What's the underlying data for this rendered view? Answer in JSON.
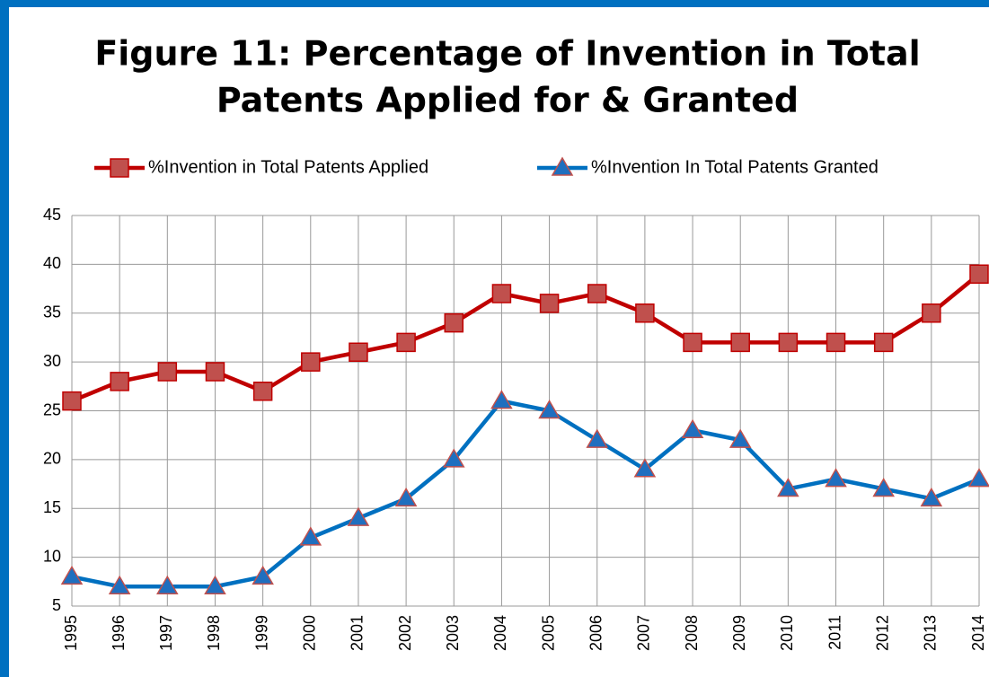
{
  "chart_data": {
    "type": "line",
    "title": [
      "Figure 11: Percentage of Invention in Total",
      "Patents Applied for & Granted"
    ],
    "categories": [
      "1995",
      "1996",
      "1997",
      "1998",
      "1999",
      "2000",
      "2001",
      "2002",
      "2003",
      "2004",
      "2005",
      "2006",
      "2007",
      "2008",
      "2009",
      "2010",
      "2011",
      "2012",
      "2013",
      "2014"
    ],
    "series": [
      {
        "name": "%Invention in Total Patents Applied",
        "color": "#c00000",
        "marker": "square",
        "marker_color": "#c0504d",
        "values": [
          26,
          28,
          29,
          29,
          27,
          30,
          31,
          32,
          34,
          37,
          36,
          37,
          35,
          32,
          32,
          32,
          32,
          32,
          35,
          39
        ]
      },
      {
        "name": "%Invention In Total Patents Granted",
        "color": "#0070c0",
        "marker": "triangle",
        "marker_color": "#1f6fbf",
        "values": [
          8,
          7,
          7,
          7,
          8,
          12,
          14,
          16,
          20,
          26,
          25,
          22,
          19,
          23,
          22,
          17,
          18,
          17,
          16,
          18
        ]
      }
    ],
    "ylim": [
      5,
      45
    ],
    "yticks": [
      5,
      10,
      15,
      20,
      25,
      30,
      35,
      40,
      45
    ],
    "grid": true,
    "legend": "top"
  }
}
